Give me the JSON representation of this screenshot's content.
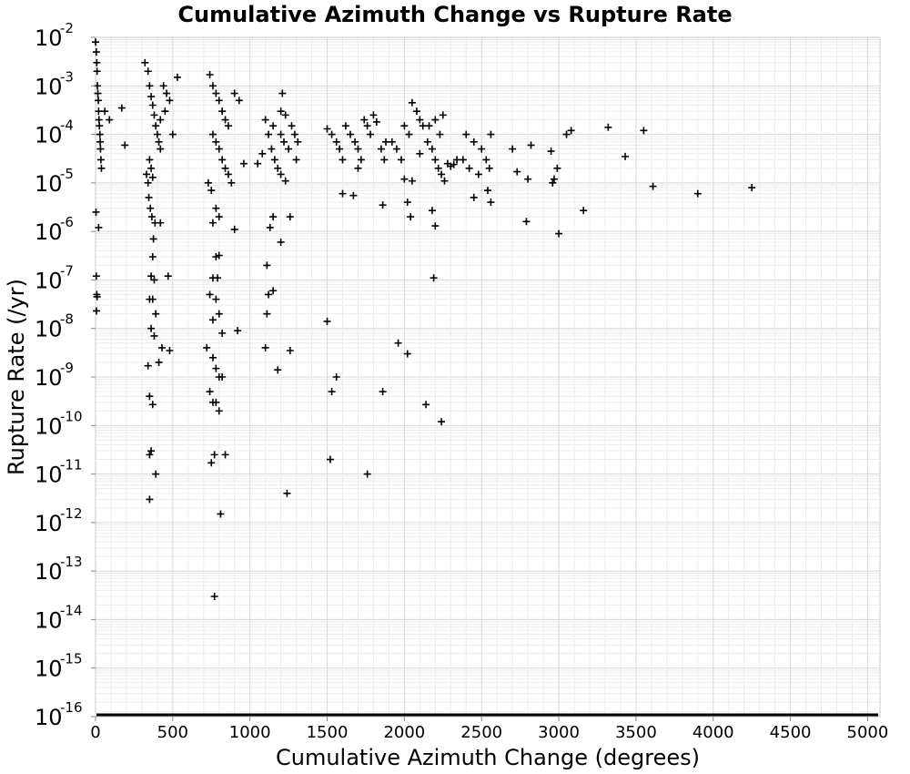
{
  "chart_data": {
    "type": "scatter",
    "title": "Cumulative Azimuth Change vs Rupture Rate",
    "xlabel": "Cumulative Azimuth Change (degrees)",
    "ylabel": "Rupture Rate (/yr)",
    "xlim": [
      0,
      5080
    ],
    "ylim": [
      1e-16,
      0.01
    ],
    "yscale": "log",
    "xticks": [
      0,
      500,
      1000,
      1500,
      2000,
      2500,
      3000,
      3500,
      4000,
      4500,
      5000
    ],
    "ytick_exponents": [
      -2,
      -3,
      -4,
      -5,
      -6,
      -7,
      -8,
      -9,
      -10,
      -11,
      -12,
      -13,
      -14,
      -15,
      -16
    ],
    "ytick_base": "10",
    "grid": true,
    "legend": "none",
    "marker": "plus",
    "marker_color": "#000000",
    "points": [
      [
        0,
        0.008
      ],
      [
        5,
        0.005
      ],
      [
        8,
        0.003
      ],
      [
        10,
        0.002
      ],
      [
        12,
        0.001
      ],
      [
        15,
        0.0007
      ],
      [
        18,
        0.0005
      ],
      [
        20,
        0.0003
      ],
      [
        22,
        0.0002
      ],
      [
        25,
        0.00015
      ],
      [
        28,
        0.0001
      ],
      [
        30,
        7e-05
      ],
      [
        32,
        5e-05
      ],
      [
        35,
        3e-05
      ],
      [
        38,
        2e-05
      ],
      [
        3,
        2.5e-06
      ],
      [
        5,
        1.2e-07
      ],
      [
        8,
        5e-08
      ],
      [
        10,
        4.5e-08
      ],
      [
        6,
        2.3e-08
      ],
      [
        20,
        1.2e-06
      ],
      [
        60,
        0.0003
      ],
      [
        90,
        0.0002
      ],
      [
        170,
        0.00035
      ],
      [
        190,
        6e-05
      ],
      [
        320,
        0.003
      ],
      [
        340,
        0.002
      ],
      [
        350,
        0.001
      ],
      [
        360,
        0.0006
      ],
      [
        370,
        0.0004
      ],
      [
        380,
        0.00025
      ],
      [
        390,
        0.00015
      ],
      [
        400,
        0.0001
      ],
      [
        410,
        7e-05
      ],
      [
        420,
        5e-05
      ],
      [
        350,
        3e-05
      ],
      [
        360,
        2e-05
      ],
      [
        370,
        1.3e-05
      ],
      [
        340,
        1e-05
      ],
      [
        330,
        1.5e-05
      ],
      [
        345,
        5e-06
      ],
      [
        355,
        3e-06
      ],
      [
        365,
        2e-06
      ],
      [
        375,
        7e-07
      ],
      [
        385,
        1.5e-06
      ],
      [
        420,
        1.5e-06
      ],
      [
        370,
        3e-07
      ],
      [
        360,
        1.2e-07
      ],
      [
        380,
        1e-07
      ],
      [
        470,
        1.2e-07
      ],
      [
        350,
        4e-08
      ],
      [
        370,
        4e-08
      ],
      [
        390,
        2e-08
      ],
      [
        360,
        1e-08
      ],
      [
        380,
        7e-09
      ],
      [
        430,
        4e-09
      ],
      [
        480,
        3.5e-09
      ],
      [
        340,
        1.7e-09
      ],
      [
        410,
        2e-09
      ],
      [
        350,
        4e-10
      ],
      [
        370,
        2.7e-10
      ],
      [
        360,
        3e-11
      ],
      [
        350,
        2.5e-11
      ],
      [
        390,
        1e-11
      ],
      [
        350,
        3e-12
      ],
      [
        440,
        0.001
      ],
      [
        460,
        0.0007
      ],
      [
        480,
        0.0005
      ],
      [
        450,
        0.0003
      ],
      [
        420,
        0.0002
      ],
      [
        500,
        0.0001
      ],
      [
        530,
        0.0015
      ],
      [
        740,
        0.0017
      ],
      [
        760,
        0.001
      ],
      [
        780,
        0.0007
      ],
      [
        800,
        0.0005
      ],
      [
        820,
        0.0003
      ],
      [
        840,
        0.0002
      ],
      [
        860,
        0.00015
      ],
      [
        760,
        0.0001
      ],
      [
        780,
        7e-05
      ],
      [
        800,
        5e-05
      ],
      [
        820,
        3e-05
      ],
      [
        840,
        2e-05
      ],
      [
        860,
        1.5e-05
      ],
      [
        880,
        1e-05
      ],
      [
        730,
        1e-05
      ],
      [
        750,
        7e-06
      ],
      [
        780,
        3e-06
      ],
      [
        800,
        2e-06
      ],
      [
        760,
        1.5e-06
      ],
      [
        900,
        1.1e-06
      ],
      [
        780,
        3e-07
      ],
      [
        800,
        3.2e-07
      ],
      [
        760,
        1.1e-07
      ],
      [
        790,
        1.1e-07
      ],
      [
        740,
        5e-08
      ],
      [
        780,
        4e-08
      ],
      [
        800,
        2e-08
      ],
      [
        760,
        1.5e-08
      ],
      [
        820,
        8e-09
      ],
      [
        920,
        9e-09
      ],
      [
        720,
        4e-09
      ],
      [
        760,
        2.5e-09
      ],
      [
        780,
        1.5e-09
      ],
      [
        800,
        1e-09
      ],
      [
        820,
        1e-09
      ],
      [
        740,
        5e-10
      ],
      [
        760,
        3e-10
      ],
      [
        780,
        3e-10
      ],
      [
        800,
        2e-10
      ],
      [
        770,
        2.5e-11
      ],
      [
        840,
        2.5e-11
      ],
      [
        750,
        1.7e-11
      ],
      [
        810,
        1.5e-12
      ],
      [
        770,
        3e-14
      ],
      [
        960,
        2.5e-05
      ],
      [
        930,
        0.0005
      ],
      [
        900,
        0.0007
      ],
      [
        1100,
        0.0002
      ],
      [
        1150,
        0.00015
      ],
      [
        1200,
        0.0001
      ],
      [
        1220,
        7e-05
      ],
      [
        1250,
        5e-05
      ],
      [
        1300,
        3e-05
      ],
      [
        1120,
        0.0001
      ],
      [
        1140,
        5e-05
      ],
      [
        1160,
        3e-05
      ],
      [
        1180,
        2e-05
      ],
      [
        1200,
        1.5e-05
      ],
      [
        1230,
        1.1e-05
      ],
      [
        1200,
        0.0003
      ],
      [
        1230,
        0.00025
      ],
      [
        1270,
        0.00015
      ],
      [
        1290,
        0.0001
      ],
      [
        1310,
        7e-05
      ],
      [
        1210,
        0.0007
      ],
      [
        1150,
        2e-06
      ],
      [
        1260,
        2e-06
      ],
      [
        1200,
        6e-07
      ],
      [
        1130,
        1.2e-06
      ],
      [
        1110,
        2e-07
      ],
      [
        1150,
        6e-08
      ],
      [
        1120,
        5e-08
      ],
      [
        1110,
        2e-08
      ],
      [
        1100,
        4e-09
      ],
      [
        1260,
        3.5e-09
      ],
      [
        1180,
        1.4e-09
      ],
      [
        1240,
        4e-12
      ],
      [
        1050,
        2.5e-05
      ],
      [
        1080,
        4e-05
      ],
      [
        1500,
        0.00013
      ],
      [
        1530,
        0.0001
      ],
      [
        1560,
        7e-05
      ],
      [
        1580,
        5e-05
      ],
      [
        1600,
        3e-05
      ],
      [
        1620,
        0.00015
      ],
      [
        1650,
        0.0001
      ],
      [
        1680,
        7e-05
      ],
      [
        1700,
        5e-05
      ],
      [
        1720,
        3e-05
      ],
      [
        1740,
        0.0002
      ],
      [
        1760,
        0.00015
      ],
      [
        1780,
        0.0001
      ],
      [
        1800,
        0.00025
      ],
      [
        1820,
        0.00018
      ],
      [
        1850,
        5e-05
      ],
      [
        1870,
        3e-05
      ],
      [
        1880,
        7e-05
      ],
      [
        1600,
        6e-06
      ],
      [
        1670,
        5.5e-06
      ],
      [
        1860,
        3.5e-06
      ],
      [
        1500,
        1.4e-08
      ],
      [
        1560,
        1e-09
      ],
      [
        1530,
        5e-10
      ],
      [
        1520,
        2e-11
      ],
      [
        1760,
        1e-11
      ],
      [
        1860,
        5e-10
      ],
      [
        1960,
        5e-09
      ],
      [
        2020,
        3e-09
      ],
      [
        1700,
        2e-05
      ],
      [
        2000,
        0.00015
      ],
      [
        2030,
        0.0001
      ],
      [
        2050,
        0.00045
      ],
      [
        2080,
        0.0003
      ],
      [
        2100,
        0.0002
      ],
      [
        2120,
        0.00015
      ],
      [
        2150,
        7e-05
      ],
      [
        2180,
        5e-05
      ],
      [
        2200,
        3e-05
      ],
      [
        2220,
        2e-05
      ],
      [
        2240,
        1.5e-05
      ],
      [
        2260,
        1.1e-05
      ],
      [
        2280,
        2.5e-05
      ],
      [
        2300,
        2.2e-05
      ],
      [
        2320,
        2.4e-05
      ],
      [
        2340,
        3e-05
      ],
      [
        2000,
        1.2e-05
      ],
      [
        2050,
        1.1e-05
      ],
      [
        2100,
        4e-05
      ],
      [
        2160,
        0.00015
      ],
      [
        2200,
        0.0002
      ],
      [
        2230,
        0.0001
      ],
      [
        2250,
        0.00025
      ],
      [
        2020,
        4e-06
      ],
      [
        2040,
        2e-06
      ],
      [
        2180,
        2.7e-06
      ],
      [
        2200,
        1.3e-06
      ],
      [
        2190,
        1.1e-07
      ],
      [
        2140,
        2.7e-10
      ],
      [
        2240,
        1.2e-10
      ],
      [
        1920,
        7e-05
      ],
      [
        1950,
        5e-05
      ],
      [
        1980,
        3e-05
      ],
      [
        2400,
        0.0001
      ],
      [
        2450,
        7e-05
      ],
      [
        2500,
        5e-05
      ],
      [
        2530,
        3e-05
      ],
      [
        2560,
        0.0001
      ],
      [
        2550,
        2e-05
      ],
      [
        2480,
        1.5e-05
      ],
      [
        2540,
        7e-06
      ],
      [
        2560,
        4e-06
      ],
      [
        2450,
        5e-06
      ],
      [
        2420,
        2e-05
      ],
      [
        2380,
        3e-05
      ],
      [
        2700,
        5e-05
      ],
      [
        2730,
        1.7e-05
      ],
      [
        2800,
        1.2e-05
      ],
      [
        2820,
        6e-05
      ],
      [
        2790,
        1.6e-06
      ],
      [
        2950,
        4.5e-05
      ],
      [
        2970,
        1.2e-05
      ],
      [
        2990,
        2e-05
      ],
      [
        3000,
        9e-07
      ],
      [
        2960,
        1e-05
      ],
      [
        3050,
        0.0001
      ],
      [
        3080,
        0.00012
      ],
      [
        3320,
        0.00014
      ],
      [
        3430,
        3.5e-05
      ],
      [
        3550,
        0.00012
      ],
      [
        3160,
        2.7e-06
      ],
      [
        3610,
        8.5e-06
      ],
      [
        3900,
        6e-06
      ],
      [
        4250,
        8e-06
      ]
    ]
  }
}
